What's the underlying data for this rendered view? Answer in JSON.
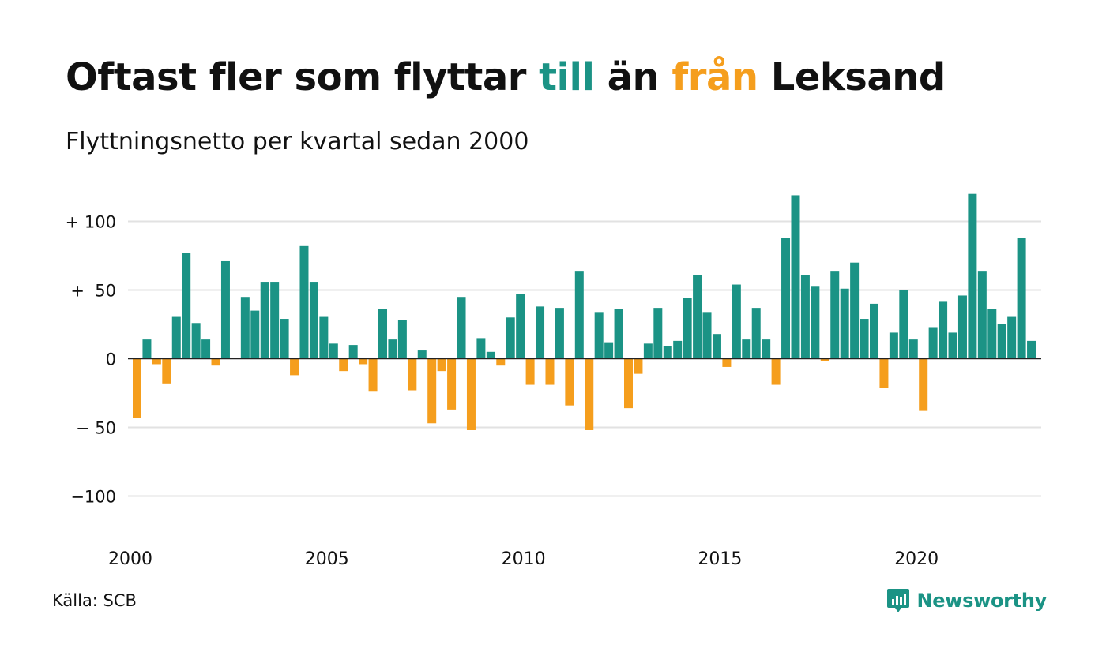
{
  "title": {
    "part1": "Oftast fler som flyttar ",
    "till": "till",
    "part2": " än ",
    "fran": "från",
    "part3": " Leksand"
  },
  "subtitle": "Flyttningsnetto per kvartal sedan 2000",
  "source": "Källa: SCB",
  "brand": "Newsworthy",
  "colors": {
    "positive": "#1b9385",
    "negative": "#f59e1d",
    "grid": "#e2e2e2",
    "axis": "#222222"
  },
  "chart_data": {
    "type": "bar",
    "x_ticks": [
      {
        "year": 2000,
        "label": "2000"
      },
      {
        "year": 2005,
        "label": "2005"
      },
      {
        "year": 2010,
        "label": "2010"
      },
      {
        "year": 2015,
        "label": "2015"
      },
      {
        "year": 2020,
        "label": "2020"
      }
    ],
    "y_ticks": [
      {
        "value": 100,
        "label": "+ 100"
      },
      {
        "value": 50,
        "label": "+  50"
      },
      {
        "value": 0,
        "label": "0"
      },
      {
        "value": -50,
        "label": "− 50"
      },
      {
        "value": -100,
        "label": "−100"
      }
    ],
    "ylim": [
      -125,
      125
    ],
    "grid": true,
    "first_quarter": "2000 Q1",
    "values": [
      -43,
      14,
      -4,
      -18,
      31,
      77,
      26,
      14,
      -5,
      71,
      0,
      45,
      35,
      56,
      56,
      29,
      -12,
      82,
      56,
      31,
      11,
      -9,
      10,
      -4,
      -24,
      36,
      14,
      28,
      -23,
      6,
      -47,
      -9,
      -37,
      45,
      -52,
      15,
      5,
      -5,
      30,
      47,
      -19,
      38,
      -19,
      37,
      -34,
      64,
      -52,
      34,
      12,
      36,
      -36,
      -11,
      11,
      37,
      9,
      13,
      44,
      61,
      34,
      18,
      -6,
      54,
      14,
      37,
      14,
      -19,
      88,
      119,
      61,
      53,
      -2,
      64,
      51,
      70,
      29,
      40,
      -21,
      19,
      50,
      14,
      -38,
      23,
      42,
      19,
      46,
      120,
      64,
      36,
      25,
      31,
      88,
      13
    ]
  }
}
